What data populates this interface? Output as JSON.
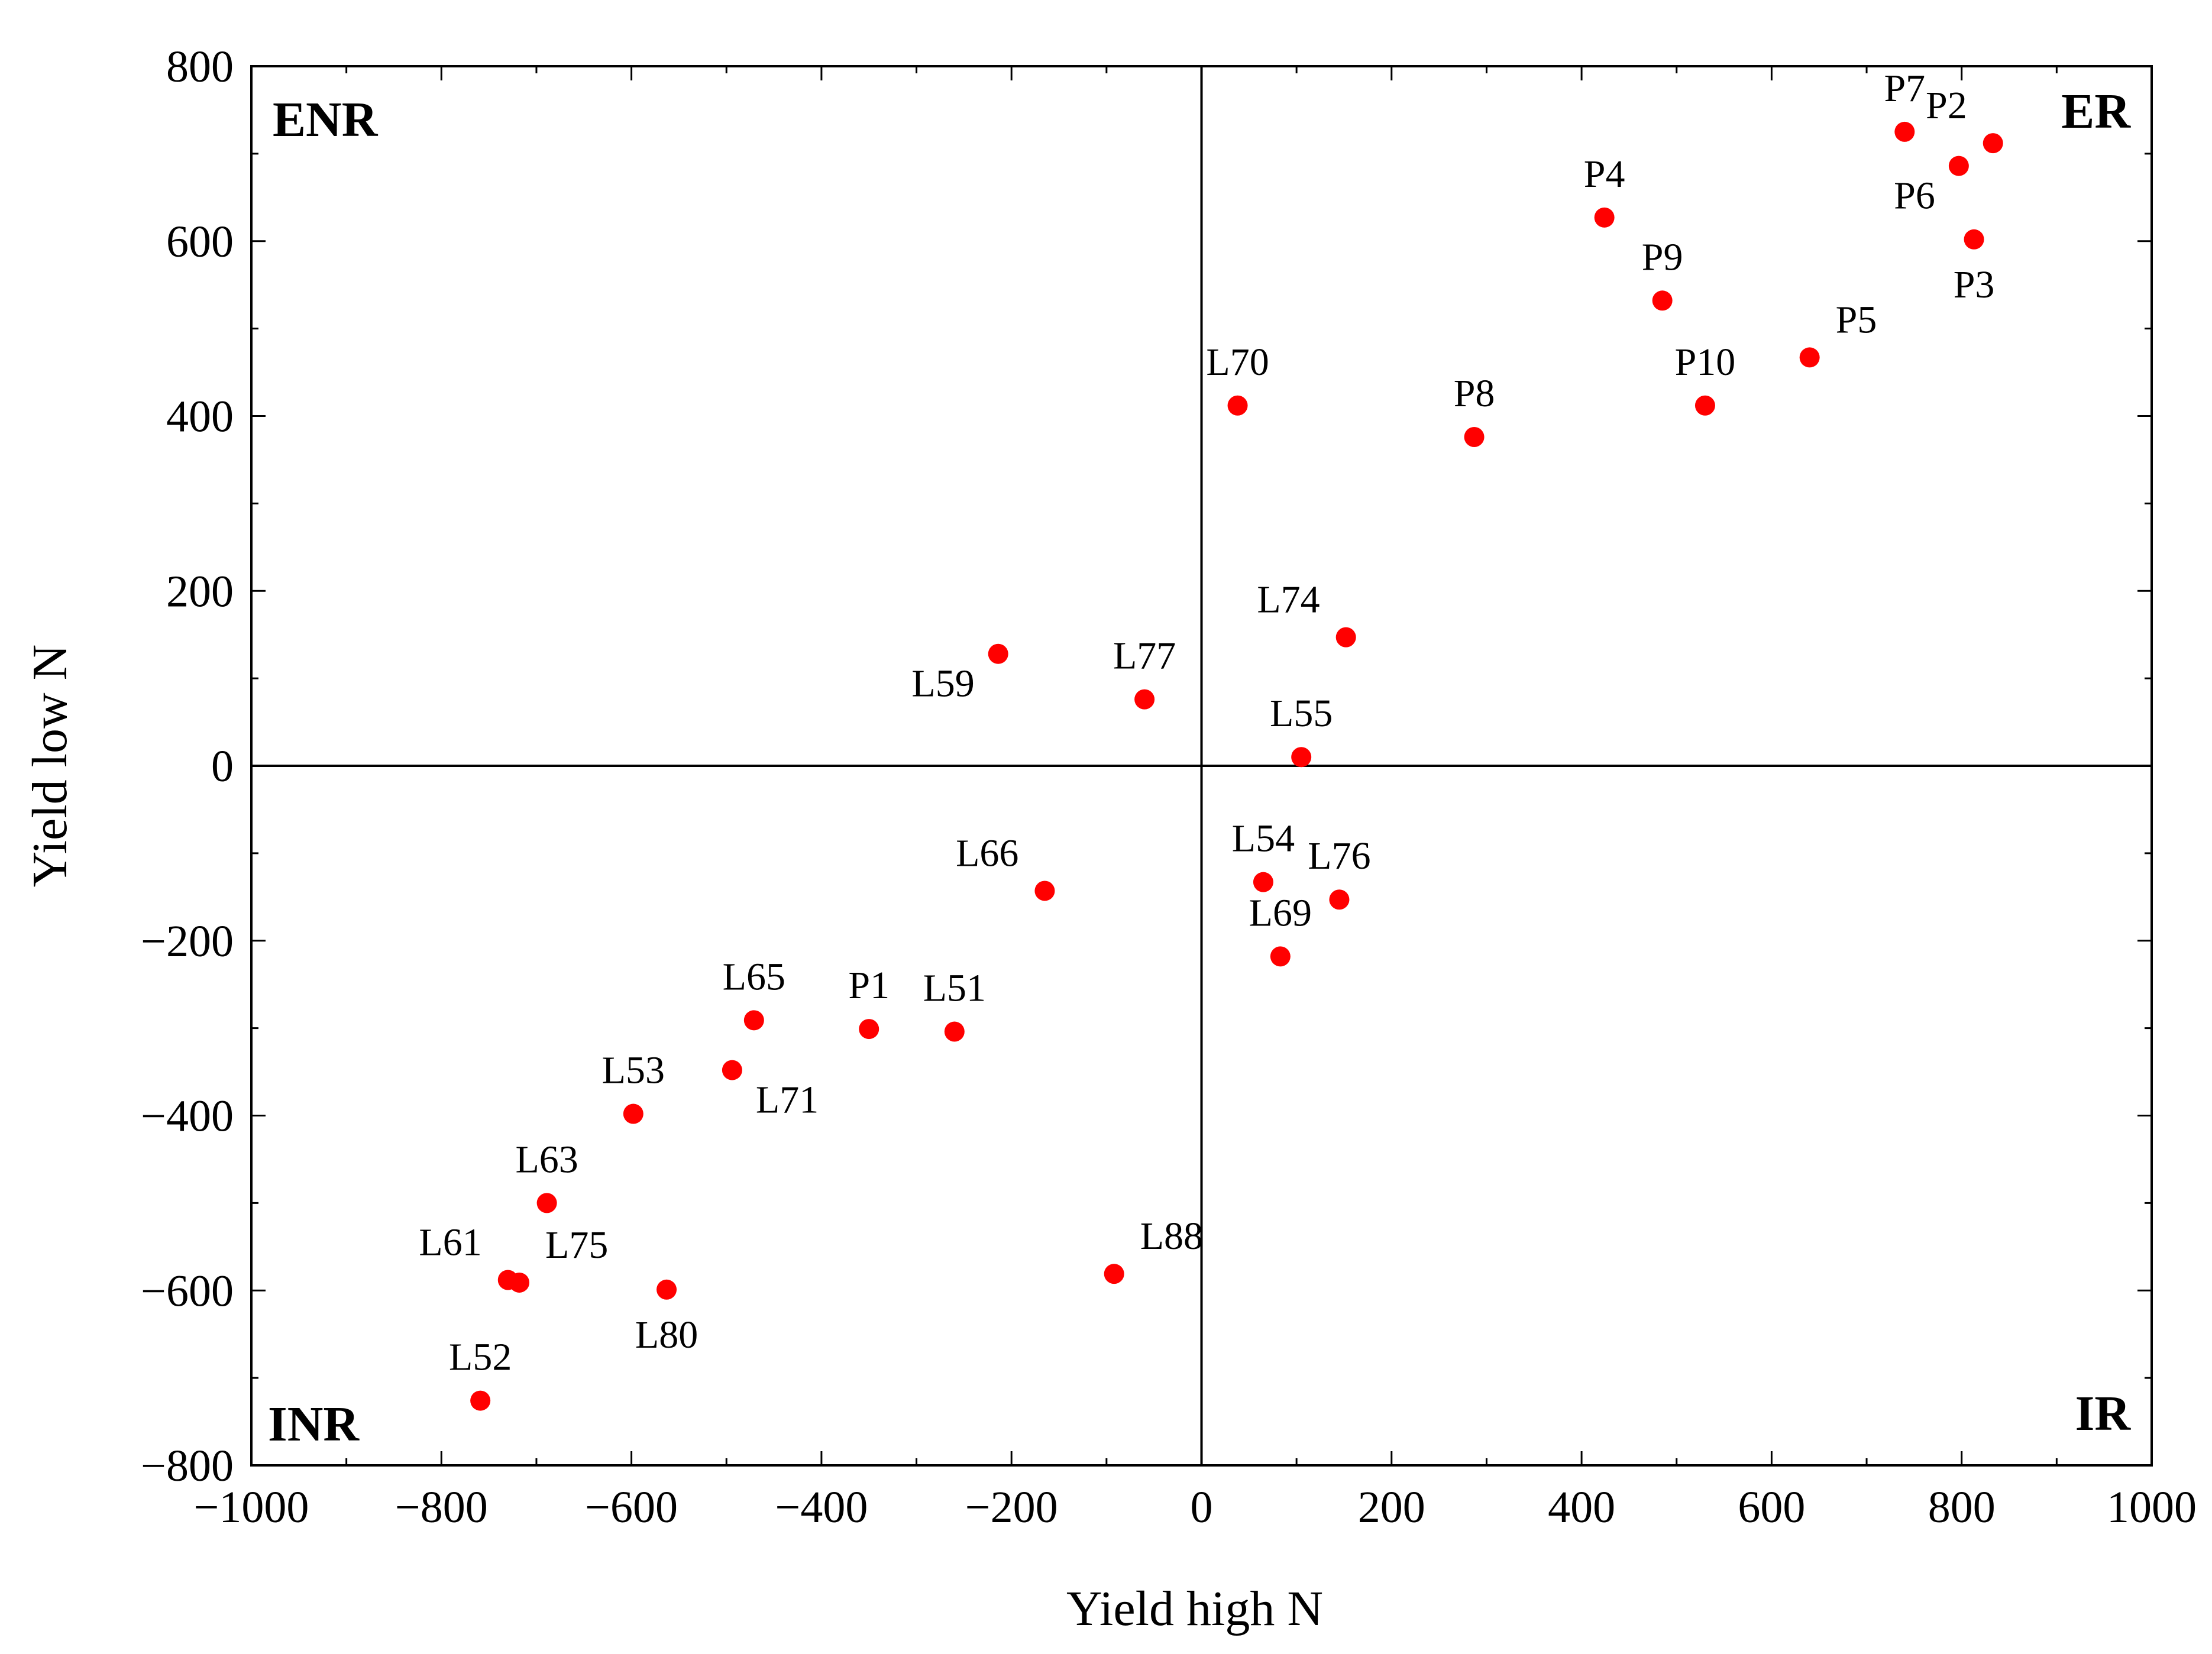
{
  "chart_data": {
    "type": "scatter",
    "xlabel": "Yield high N",
    "ylabel": "Yield low N",
    "xlim": [
      -1000,
      1000
    ],
    "ylim": [
      -800,
      800
    ],
    "x_ticks": [
      -1000,
      -800,
      -600,
      -400,
      -200,
      0,
      200,
      400,
      600,
      800,
      1000
    ],
    "y_ticks": [
      -800,
      -600,
      -400,
      -200,
      0,
      200,
      400,
      600,
      800
    ],
    "grid": false,
    "reference_lines": {
      "x": 0,
      "y": 0
    },
    "marker_color": "#ff0000",
    "quadrant_labels": [
      {
        "text": "ENR",
        "position": "top-left"
      },
      {
        "text": "ER",
        "position": "top-right"
      },
      {
        "text": "INR",
        "position": "bottom-left"
      },
      {
        "text": "IR",
        "position": "bottom-right"
      }
    ],
    "points": [
      {
        "label": "P7",
        "x": 740,
        "y": 725,
        "label_side": "top"
      },
      {
        "label": "P2",
        "x": 833,
        "y": 712,
        "label_side": "top-left"
      },
      {
        "label": "P6",
        "x": 797,
        "y": 686,
        "label_side": "bottom-left"
      },
      {
        "label": "P3",
        "x": 813,
        "y": 602,
        "label_side": "bottom"
      },
      {
        "label": "P4",
        "x": 424,
        "y": 627,
        "label_side": "top"
      },
      {
        "label": "P9",
        "x": 485,
        "y": 532,
        "label_side": "top"
      },
      {
        "label": "P5",
        "x": 640,
        "y": 467,
        "label_side": "top-right"
      },
      {
        "label": "P10",
        "x": 530,
        "y": 412,
        "label_side": "top"
      },
      {
        "label": "L70",
        "x": 38,
        "y": 412,
        "label_side": "top"
      },
      {
        "label": "P8",
        "x": 287,
        "y": 376,
        "label_side": "top"
      },
      {
        "label": "L74",
        "x": 152,
        "y": 147,
        "label_side": "top-left"
      },
      {
        "label": "L59",
        "x": -214,
        "y": 128,
        "label_side": "bottom-left"
      },
      {
        "label": "L77",
        "x": -60,
        "y": 76,
        "label_side": "top"
      },
      {
        "label": "L55",
        "x": 105,
        "y": 10,
        "label_side": "top"
      },
      {
        "label": "L54",
        "x": 65,
        "y": -133,
        "label_side": "top"
      },
      {
        "label": "L76",
        "x": 145,
        "y": -153,
        "label_side": "top"
      },
      {
        "label": "L66",
        "x": -165,
        "y": -143,
        "label_side": "top-left"
      },
      {
        "label": "L69",
        "x": 83,
        "y": -218,
        "label_side": "top"
      },
      {
        "label": "L65",
        "x": -471,
        "y": -291,
        "label_side": "top"
      },
      {
        "label": "P1",
        "x": -350,
        "y": -301,
        "label_side": "top"
      },
      {
        "label": "L51",
        "x": -260,
        "y": -304,
        "label_side": "top"
      },
      {
        "label": "L71",
        "x": -494,
        "y": -348,
        "label_side": "bottom-right"
      },
      {
        "label": "L53",
        "x": -598,
        "y": -398,
        "label_side": "top"
      },
      {
        "label": "L63",
        "x": -689,
        "y": -500,
        "label_side": "top"
      },
      {
        "label": "L88",
        "x": -92,
        "y": -581,
        "label_side": "top-right"
      },
      {
        "label": "L61",
        "x": -730,
        "y": -588,
        "label_side": "top-left"
      },
      {
        "label": "L75",
        "x": -718,
        "y": -591,
        "label_side": "top-right"
      },
      {
        "label": "L80",
        "x": -563,
        "y": -599,
        "label_side": "bottom"
      },
      {
        "label": "L52",
        "x": -759,
        "y": -726,
        "label_side": "top"
      }
    ]
  }
}
